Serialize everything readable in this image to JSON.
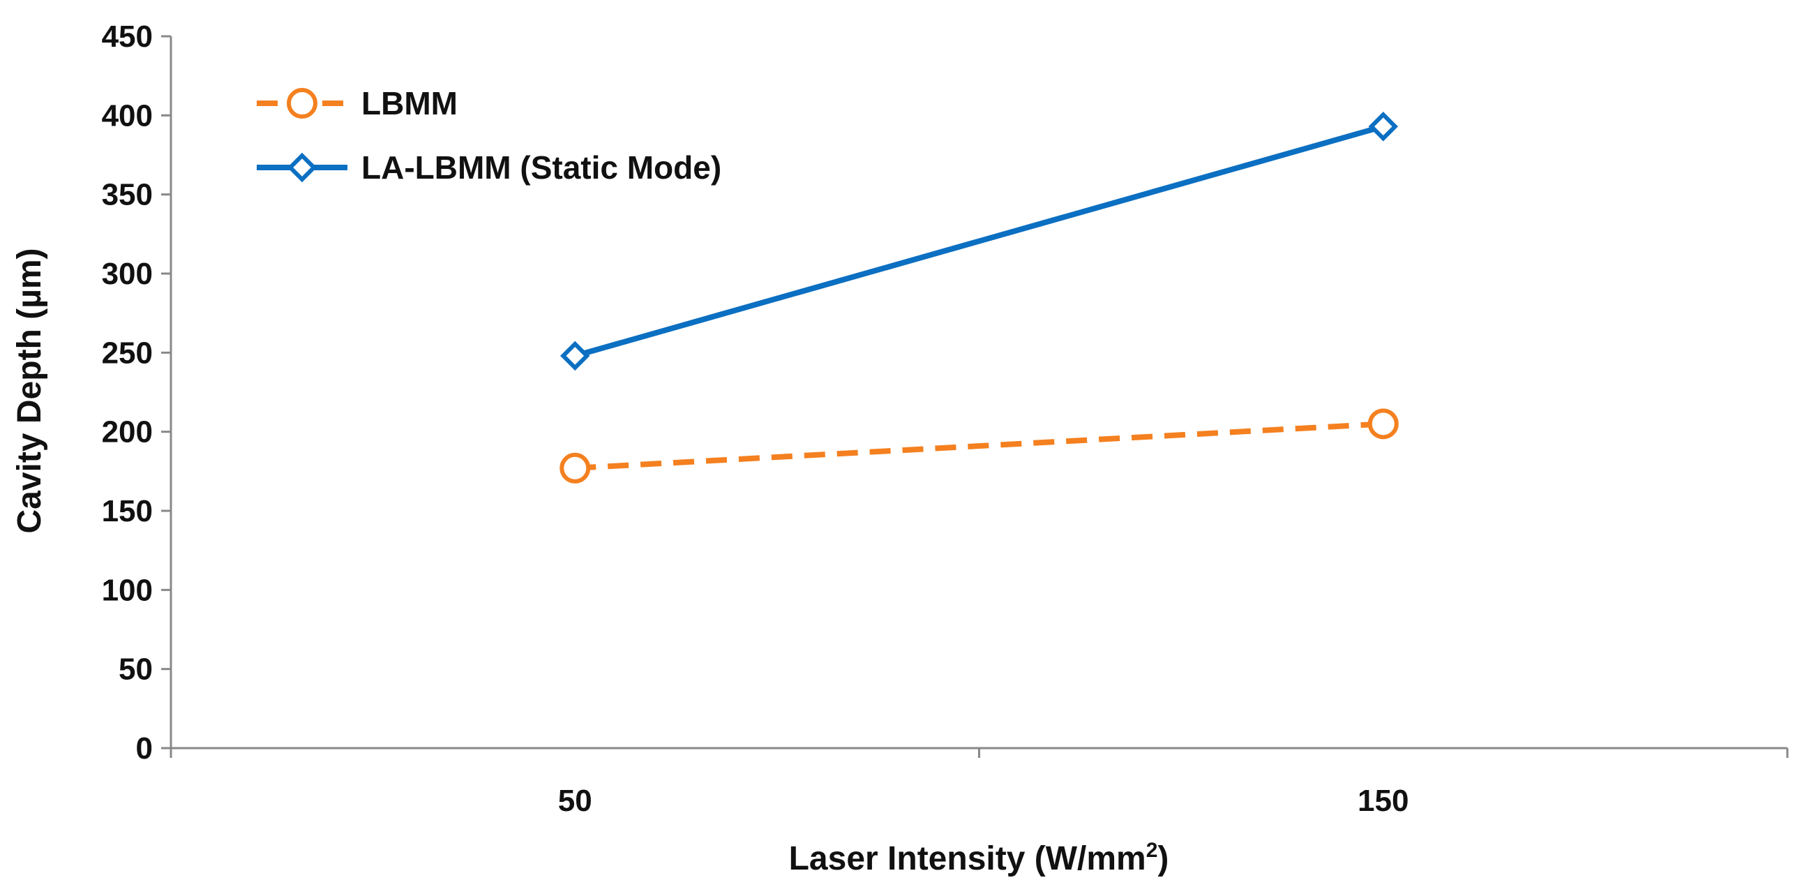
{
  "chart_data": {
    "type": "line",
    "x_categories": [
      "50",
      "150"
    ],
    "xlabel": "Laser Intensity (W/mm",
    "xlabel_sup": "2",
    "xlabel_close": ")",
    "ylabel": "Cavity  Depth (µm)",
    "ylim": [
      0,
      450
    ],
    "yticks": [
      "0",
      "50",
      "100",
      "150",
      "200",
      "250",
      "300",
      "350",
      "400",
      "450"
    ],
    "grid": false,
    "legend_position": "top-left",
    "series": [
      {
        "name": "LBMM",
        "values": [
          177,
          205
        ],
        "color": "#f4801f",
        "line_style": "dashed",
        "marker": "circle"
      },
      {
        "name": "LA-LBMM (Static Mode)",
        "values": [
          248,
          393
        ],
        "color": "#0b6fc2",
        "line_style": "solid",
        "marker": "diamond"
      }
    ]
  }
}
